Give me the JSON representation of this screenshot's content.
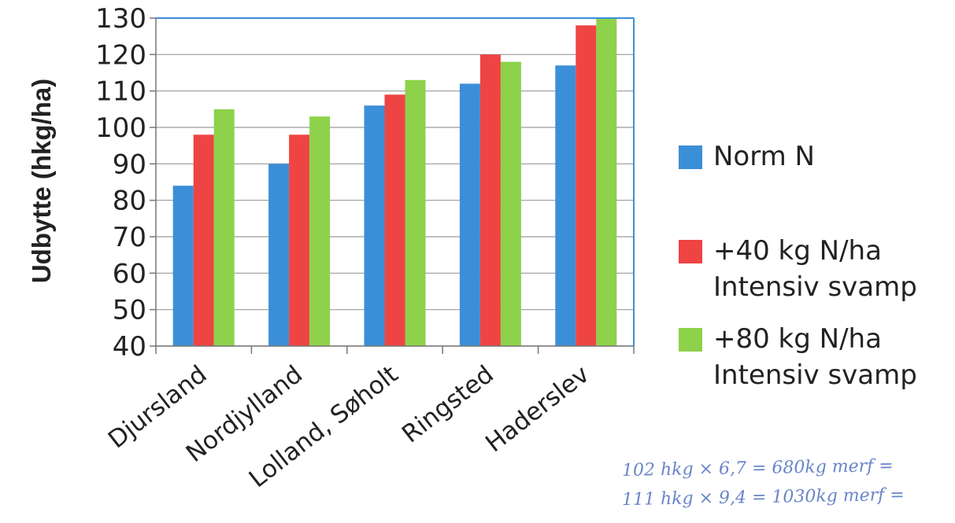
{
  "chart_data": {
    "type": "bar",
    "ylabel": "Udbytte (hkg/ha)",
    "xlabel": "",
    "ylim": [
      40,
      130
    ],
    "yticks": [
      40,
      50,
      60,
      70,
      80,
      90,
      100,
      110,
      120,
      130
    ],
    "grid": true,
    "legend_position": "right",
    "categories": [
      "Djursland",
      "Nordjylland",
      "Lolland, Søholt",
      "Ringsted",
      "Haderslev"
    ],
    "series": [
      {
        "name": "Norm N",
        "color": "#3b8fd8",
        "values": [
          84,
          90,
          106,
          112,
          117
        ]
      },
      {
        "name": "+40 kg N/ha Intensiv svamp",
        "color": "#ee4444",
        "values": [
          98,
          98,
          109,
          120,
          128
        ]
      },
      {
        "name": "+80 kg N/ha Intensiv svamp",
        "color": "#8ed14a",
        "values": [
          105,
          103,
          113,
          118,
          130
        ]
      }
    ]
  },
  "legend": [
    {
      "lines": [
        "Norm N"
      ],
      "color": "#3b8fd8"
    },
    {
      "lines": [
        "+40 kg N/ha",
        "Intensiv svamp"
      ],
      "color": "#ee4444"
    },
    {
      "lines": [
        "+80 kg N/ha",
        "Intensiv svamp"
      ],
      "color": "#8ed14a"
    }
  ],
  "handwritten_notes": [
    "102 hkg × 6,7 = 680kg merf =",
    "111 hkg × 9,4 = 1030kg merf ="
  ]
}
